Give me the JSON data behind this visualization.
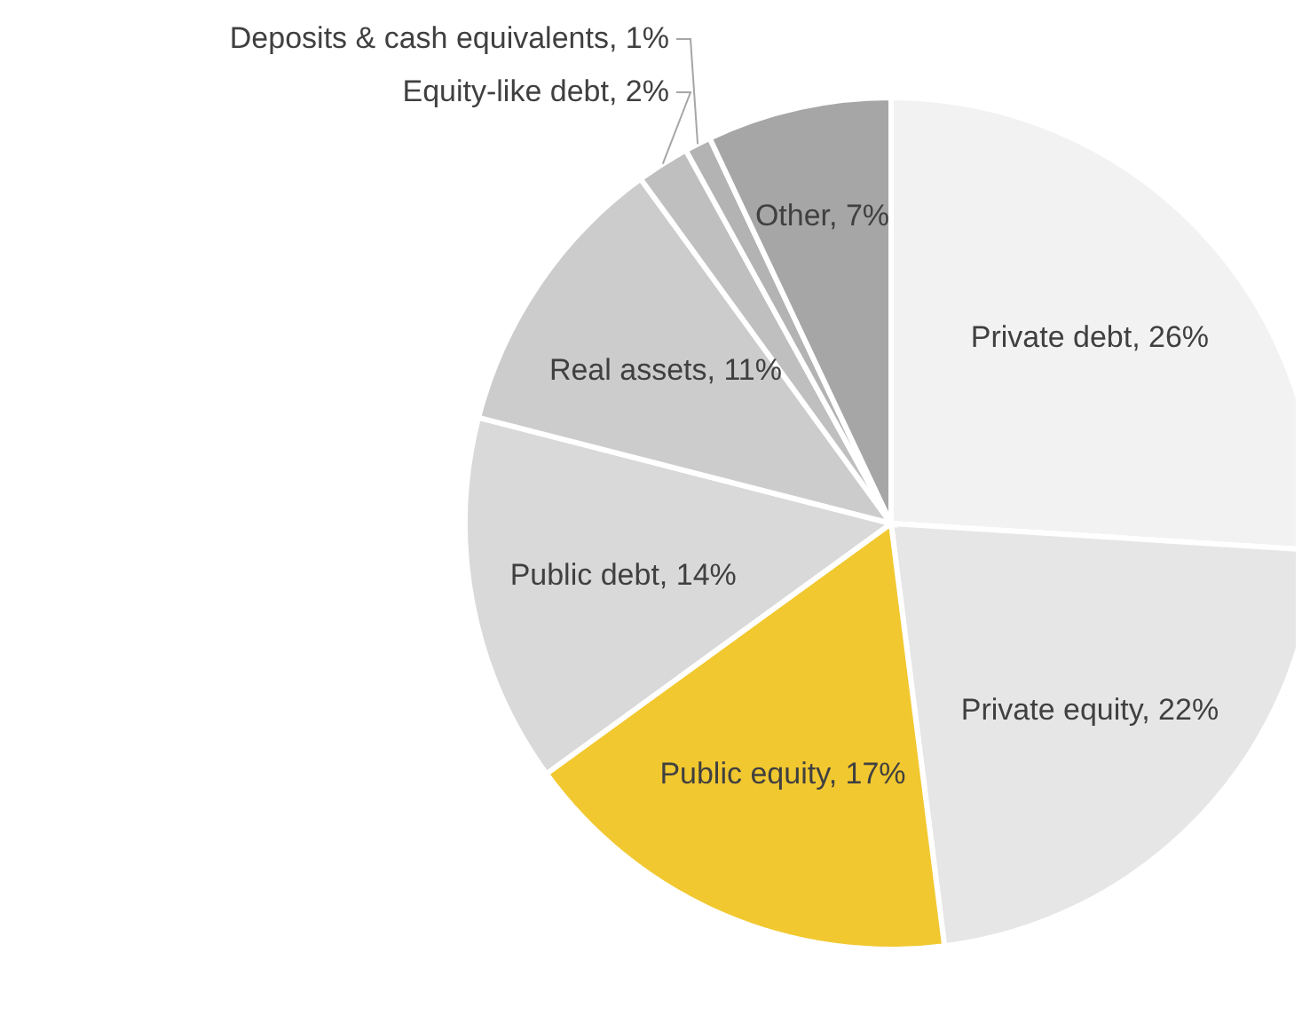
{
  "chart_data": {
    "type": "pie",
    "categories": [
      "Private debt",
      "Private equity",
      "Public equity",
      "Public debt",
      "Real assets",
      "Equity-like debt",
      "Deposits & cash equivalents",
      "Other"
    ],
    "values": [
      26,
      22,
      17,
      14,
      11,
      2,
      1,
      7
    ],
    "value_labels": [
      "26%",
      "22%",
      "17%",
      "14%",
      "11%",
      "2%",
      "1%",
      "7%"
    ],
    "colors": [
      "#f2f2f2",
      "#e6e6e6",
      "#f2c830",
      "#d9d9d9",
      "#cccccc",
      "#bfbfbf",
      "#b3b3b3",
      "#a6a6a6"
    ]
  }
}
